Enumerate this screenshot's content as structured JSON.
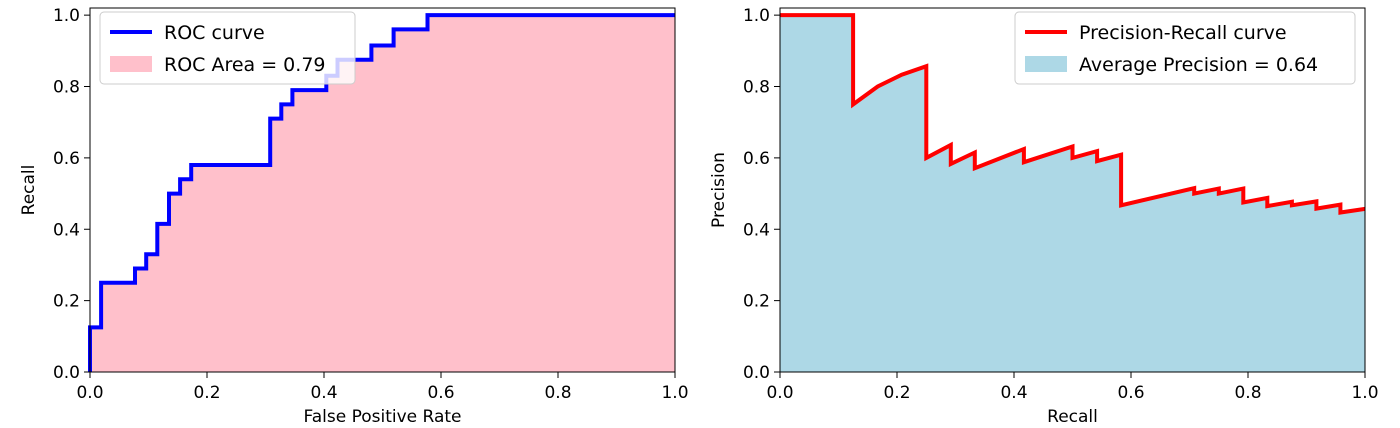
{
  "chart_data": [
    {
      "type": "line",
      "xlabel": "False Positive Rate",
      "ylabel": "Recall",
      "xlim": [
        0,
        1
      ],
      "ylim": [
        0,
        1.02
      ],
      "xticks": [
        "0.0",
        "0.2",
        "0.4",
        "0.6",
        "0.8",
        "1.0"
      ],
      "yticks": [
        "0.0",
        "0.2",
        "0.4",
        "0.6",
        "0.8",
        "1.0"
      ],
      "grid": false,
      "legend": "top-left",
      "line_name": "ROC curve",
      "area_name": "ROC Area = 0.79",
      "line_color": "#0000ff",
      "area_color": "#ffc0cb",
      "step": true,
      "x": [
        0.0,
        0.0,
        0.019,
        0.019,
        0.077,
        0.077,
        0.096,
        0.096,
        0.115,
        0.115,
        0.135,
        0.135,
        0.154,
        0.154,
        0.173,
        0.173,
        0.308,
        0.308,
        0.327,
        0.327,
        0.346,
        0.346,
        0.404,
        0.404,
        0.423,
        0.423,
        0.462,
        0.462,
        0.481,
        0.481,
        0.519,
        0.519,
        0.558,
        0.558,
        0.577,
        0.577,
        1.0
      ],
      "y": [
        0.0,
        0.125,
        0.125,
        0.25,
        0.25,
        0.29,
        0.29,
        0.33,
        0.33,
        0.415,
        0.415,
        0.5,
        0.5,
        0.54,
        0.54,
        0.58,
        0.58,
        0.71,
        0.71,
        0.75,
        0.75,
        0.79,
        0.79,
        0.83,
        0.83,
        0.875,
        0.875,
        0.875,
        0.875,
        0.915,
        0.915,
        0.96,
        0.96,
        0.96,
        0.96,
        1.0,
        1.0
      ]
    },
    {
      "type": "area",
      "xlabel": "Recall",
      "ylabel": "Precision",
      "xlim": [
        0,
        1
      ],
      "ylim": [
        0,
        1.02
      ],
      "xticks": [
        "0.0",
        "0.2",
        "0.4",
        "0.6",
        "0.8",
        "1.0"
      ],
      "yticks": [
        "0.0",
        "0.2",
        "0.4",
        "0.6",
        "0.8",
        "1.0"
      ],
      "grid": false,
      "legend": "top-right",
      "line_name": "Precision-Recall curve",
      "area_name": "Average Precision = 0.64",
      "line_color": "#ff0000",
      "area_color": "#add8e6",
      "step": false,
      "x": [
        0.0,
        0.125,
        0.125,
        0.167,
        0.208,
        0.25,
        0.25,
        0.292,
        0.292,
        0.333,
        0.333,
        0.417,
        0.417,
        0.5,
        0.5,
        0.542,
        0.542,
        0.583,
        0.583,
        0.708,
        0.708,
        0.75,
        0.75,
        0.792,
        0.792,
        0.833,
        0.833,
        0.875,
        0.875,
        0.917,
        0.917,
        0.958,
        0.958,
        1.0
      ],
      "y": [
        1.0,
        1.0,
        0.75,
        0.8,
        0.833,
        0.857,
        0.6,
        0.636,
        0.583,
        0.615,
        0.571,
        0.625,
        0.588,
        0.632,
        0.6,
        0.619,
        0.591,
        0.609,
        0.467,
        0.515,
        0.5,
        0.514,
        0.5,
        0.514,
        0.475,
        0.488,
        0.465,
        0.477,
        0.467,
        0.478,
        0.458,
        0.469,
        0.447,
        0.457
      ]
    }
  ]
}
